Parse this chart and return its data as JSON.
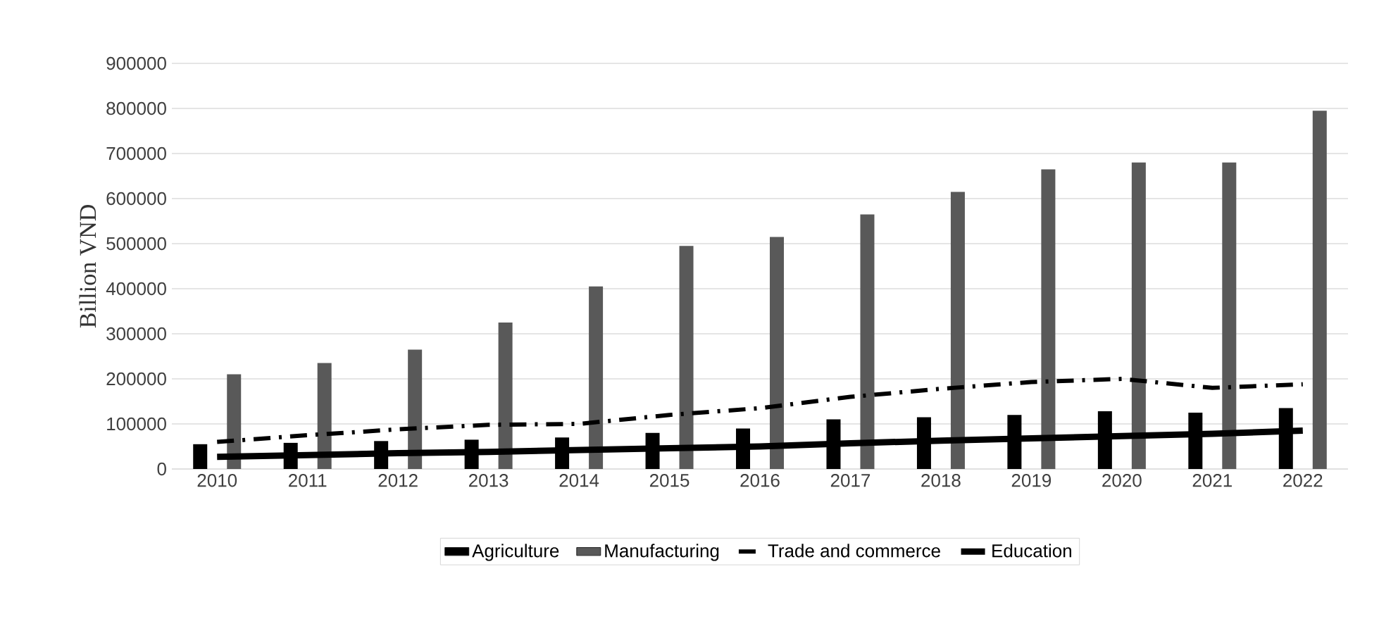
{
  "chart_data": {
    "type": "bar",
    "ylabel": "Billion VND",
    "categories": [
      "2010",
      "2011",
      "2012",
      "2013",
      "2014",
      "2015",
      "2016",
      "2017",
      "2018",
      "2019",
      "2020",
      "2021",
      "2022"
    ],
    "series": [
      {
        "name": "Agriculture",
        "color": "#000000",
        "values": [
          55000,
          58000,
          62000,
          65000,
          70000,
          80000,
          90000,
          110000,
          115000,
          120000,
          128000,
          125000,
          135000
        ]
      },
      {
        "name": "Manufacturing",
        "color": "#595959",
        "values": [
          210000,
          235000,
          265000,
          325000,
          405000,
          495000,
          515000,
          565000,
          615000,
          665000,
          680000,
          680000,
          795000
        ]
      },
      {
        "name": "Trade and commerce",
        "type": "line",
        "line_style": "dashed",
        "color": "#000000",
        "values": [
          60000,
          75000,
          88000,
          98000,
          100000,
          120000,
          135000,
          160000,
          178000,
          193000,
          200000,
          180000,
          188000
        ]
      },
      {
        "name": "Education",
        "type": "line",
        "line_style": "solid",
        "color": "#000000",
        "values": [
          27000,
          31000,
          35000,
          38000,
          42000,
          46000,
          50000,
          57000,
          63000,
          68000,
          73000,
          78000,
          85000
        ]
      }
    ],
    "ylim": [
      0,
      900000
    ],
    "yticks": [
      0,
      100000,
      200000,
      300000,
      400000,
      500000,
      600000,
      700000,
      800000,
      900000
    ],
    "grid": "y",
    "legend": "bottom",
    "marker": "none"
  }
}
